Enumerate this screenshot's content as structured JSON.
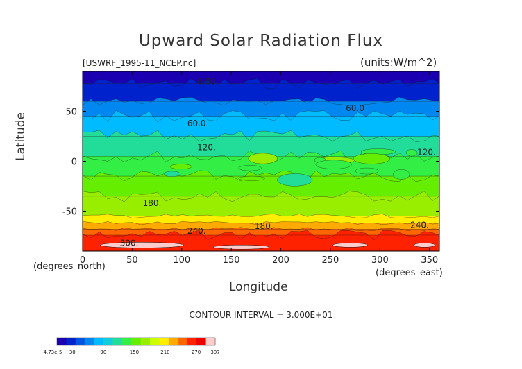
{
  "chart_data": {
    "type": "heatmap",
    "title": "Upward Solar Radiation Flux",
    "file_label": "[USWRF_1995-11_NCEP.nc]",
    "units_label": "(units:W/m^2)",
    "xlabel": "Longitude",
    "x_units_note": "(degrees_east)",
    "ylabel": "Latitude",
    "y_units_note": "(degrees_north)",
    "xlim": [
      0,
      360
    ],
    "ylim": [
      -90,
      90
    ],
    "x_ticks": [
      0,
      50,
      100,
      150,
      200,
      250,
      300,
      350
    ],
    "y_ticks": [
      -50,
      0,
      50
    ],
    "contour_interval_text": "CONTOUR INTERVAL = 3.000E+01",
    "contour_labels": [
      {
        "text": "0.00",
        "x": 125,
        "y": 80
      },
      {
        "text": "60.0",
        "x": 275,
        "y": 53
      },
      {
        "text": "60.0",
        "x": 115,
        "y": 38
      },
      {
        "text": "120.",
        "x": 125,
        "y": 14
      },
      {
        "text": "120.",
        "x": 347,
        "y": 9
      },
      {
        "text": "180.",
        "x": 70,
        "y": -42
      },
      {
        "text": "180.",
        "x": 183,
        "y": -65
      },
      {
        "text": "240.",
        "x": 115,
        "y": -70
      },
      {
        "text": "240.",
        "x": 340,
        "y": -64
      },
      {
        "text": "300.",
        "x": 47,
        "y": -82
      }
    ],
    "lat_bands": [
      {
        "lat_top": 90,
        "lat_bottom": 78,
        "value": 0
      },
      {
        "lat_top": 78,
        "lat_bottom": 60,
        "value": 30
      },
      {
        "lat_top": 60,
        "lat_bottom": 45,
        "value": 60
      },
      {
        "lat_top": 45,
        "lat_bottom": 25,
        "value": 90
      },
      {
        "lat_top": 25,
        "lat_bottom": 5,
        "value": 120
      },
      {
        "lat_top": 5,
        "lat_bottom": -15,
        "value": 150
      },
      {
        "lat_top": -15,
        "lat_bottom": -35,
        "value": 165
      },
      {
        "lat_top": -35,
        "lat_bottom": -55,
        "value": 185
      },
      {
        "lat_top": -55,
        "lat_bottom": -62,
        "value": 215
      },
      {
        "lat_top": -62,
        "lat_bottom": -68,
        "value": 240
      },
      {
        "lat_top": -68,
        "lat_bottom": -74,
        "value": 255
      },
      {
        "lat_top": -74,
        "lat_bottom": -90,
        "value": 280
      }
    ],
    "colorbar": {
      "tick_values": [
        "-4.73e-5",
        "30",
        "90",
        "150",
        "210",
        "270",
        "307"
      ],
      "colors": [
        "#1a00b0",
        "#0022cc",
        "#0055e0",
        "#0088f0",
        "#00bbff",
        "#11ccdd",
        "#22dd99",
        "#33ee44",
        "#66ee00",
        "#99ee00",
        "#ccff00",
        "#ffee00",
        "#ffaa00",
        "#ff6600",
        "#ff2200",
        "#ee0000",
        "#ffcccc"
      ]
    }
  }
}
